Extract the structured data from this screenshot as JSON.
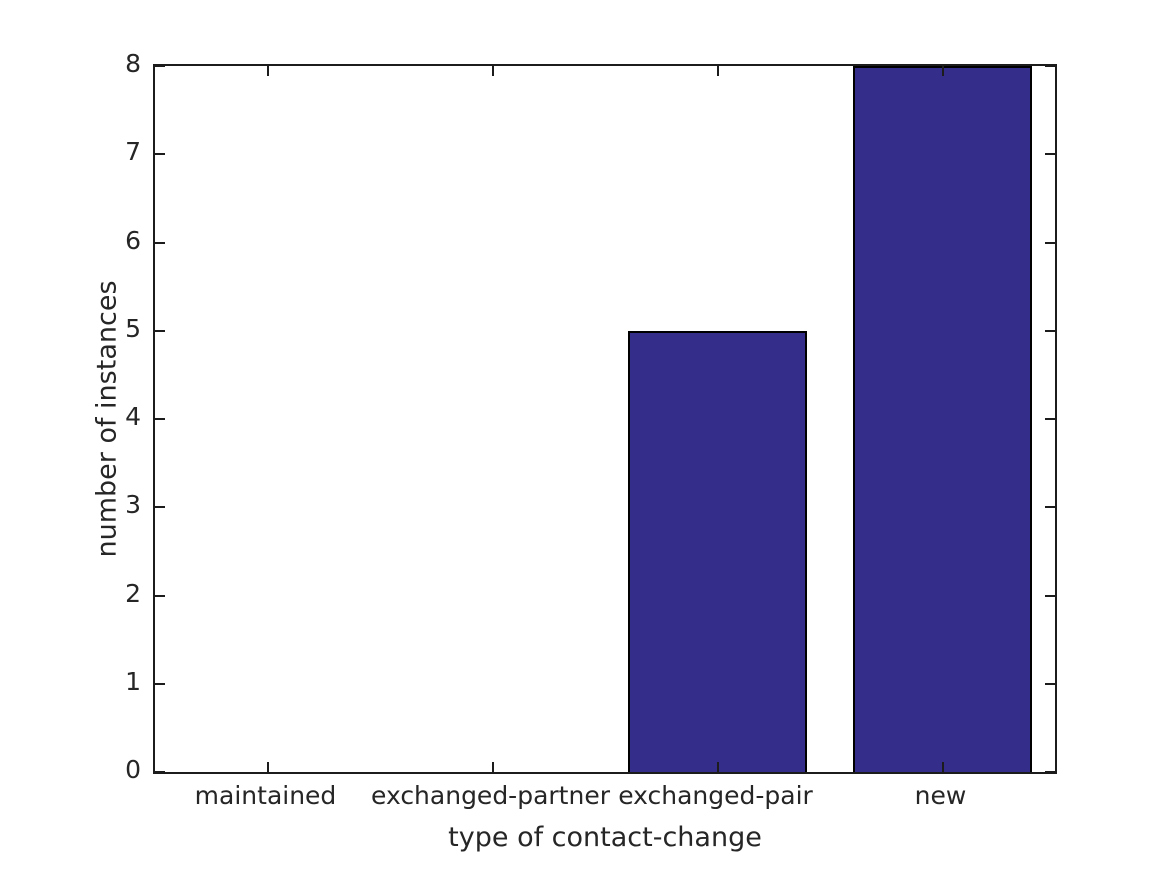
{
  "chart_data": {
    "type": "bar",
    "title": "",
    "categories": [
      "maintained",
      "exchanged-partner",
      "exchanged-pair",
      "new"
    ],
    "values": [
      0,
      0,
      5,
      8
    ],
    "xlabel": "type of contact-change",
    "ylabel": "number of instances",
    "ylim": [
      0,
      8
    ],
    "yticks": [
      0,
      1,
      2,
      3,
      4,
      5,
      6,
      7,
      8
    ],
    "grid": "off",
    "legend": "none",
    "bar_color": "#352D8A",
    "bar_edge_color": "#000000",
    "axis_color": "#1c1c1c",
    "text_color": "#262626",
    "background_color": "#ffffff"
  }
}
